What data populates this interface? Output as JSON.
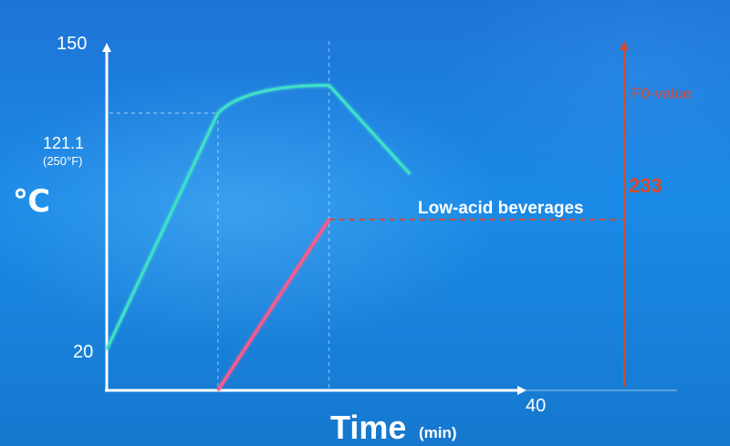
{
  "chart_data": {
    "type": "line",
    "ylabel": "℃",
    "y_ticks": [
      {
        "value": 150,
        "label": "150"
      },
      {
        "value": 121.1,
        "label": "121.1",
        "sublabel": "(250°F)"
      },
      {
        "value": 20,
        "label": "20"
      }
    ],
    "ylim": [
      20,
      150
    ],
    "xlabel": "Time",
    "xlabel_unit": "(min)",
    "x_ticks": [
      {
        "value": 40,
        "label": "40"
      }
    ],
    "xlim": [
      0,
      40
    ],
    "temperature_series": {
      "color": "#3fe0c8",
      "points": [
        [
          0,
          20
        ],
        [
          11,
          121.1
        ],
        [
          22,
          133
        ],
        [
          30,
          95
        ]
      ]
    },
    "f0_series": {
      "color": "#ff5a8a",
      "points": [
        [
          11,
          0
        ],
        [
          22,
          233
        ]
      ]
    },
    "f0_axis": {
      "label": "F0-value",
      "color": "#d24a2e",
      "tick_label": "233",
      "tick_value": 233,
      "max": 470
    },
    "annotation": "Low-acid beverages",
    "grid": false
  }
}
